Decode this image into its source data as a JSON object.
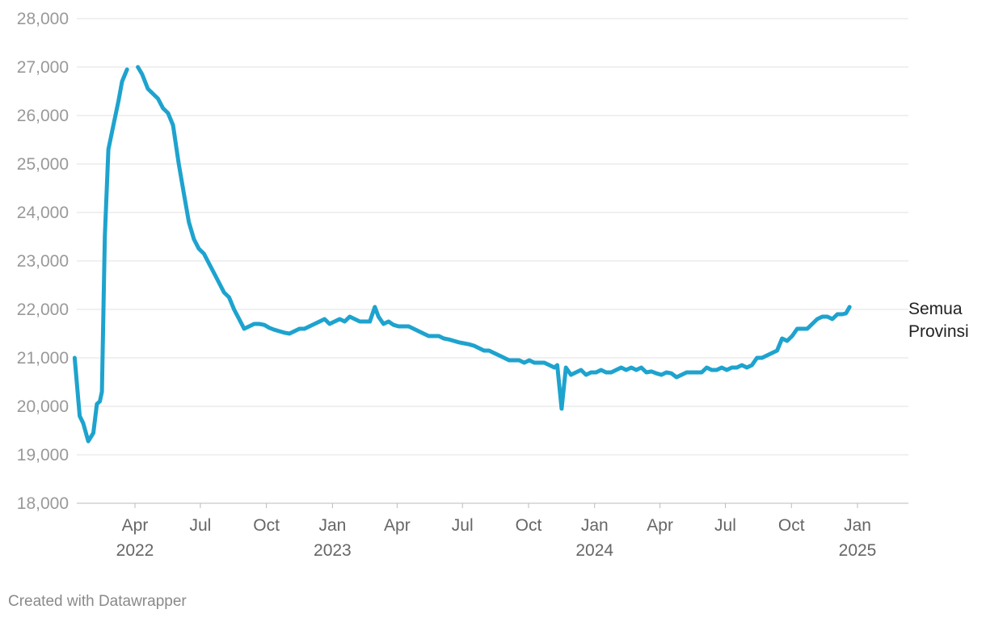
{
  "chart_data": {
    "type": "line",
    "title": "",
    "xlabel": "",
    "ylabel": "",
    "ylim": [
      18000,
      28000
    ],
    "y_ticks": [
      "28,000",
      "27,000",
      "26,000",
      "25,000",
      "24,000",
      "23,000",
      "22,000",
      "21,000",
      "20,000",
      "19,000",
      "18,000"
    ],
    "x_ticks": [
      {
        "month": "Apr",
        "year": "2022",
        "date": "2022-04-01"
      },
      {
        "month": "Jul",
        "year": "",
        "date": "2022-07-01"
      },
      {
        "month": "Oct",
        "year": "",
        "date": "2022-10-01"
      },
      {
        "month": "Jan",
        "year": "2023",
        "date": "2023-01-01"
      },
      {
        "month": "Apr",
        "year": "",
        "date": "2023-04-01"
      },
      {
        "month": "Jul",
        "year": "",
        "date": "2023-07-01"
      },
      {
        "month": "Oct",
        "year": "",
        "date": "2023-10-01"
      },
      {
        "month": "Jan",
        "year": "2024",
        "date": "2024-01-01"
      },
      {
        "month": "Apr",
        "year": "",
        "date": "2024-04-01"
      },
      {
        "month": "Jul",
        "year": "",
        "date": "2024-07-01"
      },
      {
        "month": "Oct",
        "year": "",
        "date": "2024-10-01"
      },
      {
        "month": "Jan",
        "year": "2025",
        "date": "2025-01-01"
      }
    ],
    "grid": true,
    "series": [
      {
        "name": "Semua Provinsi",
        "color": "#1ea3cf",
        "points": [
          [
            "2022-01-07",
            21000
          ],
          [
            "2022-01-14",
            19800
          ],
          [
            "2022-01-19",
            19650
          ],
          [
            "2022-01-26",
            19280
          ],
          [
            "2022-02-02",
            19450
          ],
          [
            "2022-02-07",
            20050
          ],
          [
            "2022-02-11",
            20100
          ],
          [
            "2022-02-14",
            20300
          ],
          [
            "2022-02-18",
            23500
          ],
          [
            "2022-02-23",
            25300
          ],
          [
            "2022-03-02",
            25800
          ],
          [
            "2022-03-09",
            26300
          ],
          [
            "2022-03-14",
            26700
          ],
          [
            "2022-03-21",
            26950
          ],
          null,
          [
            "2022-04-05",
            27000
          ],
          [
            "2022-04-11",
            26850
          ],
          [
            "2022-04-19",
            26550
          ],
          [
            "2022-04-26",
            26450
          ],
          [
            "2022-05-03",
            26350
          ],
          [
            "2022-05-10",
            26150
          ],
          [
            "2022-05-17",
            26050
          ],
          [
            "2022-05-24",
            25800
          ],
          [
            "2022-06-01",
            25000
          ],
          [
            "2022-06-08",
            24400
          ],
          [
            "2022-06-15",
            23800
          ],
          [
            "2022-06-22",
            23450
          ],
          [
            "2022-06-29",
            23250
          ],
          [
            "2022-07-06",
            23150
          ],
          [
            "2022-07-13",
            22950
          ],
          [
            "2022-07-20",
            22750
          ],
          [
            "2022-07-27",
            22550
          ],
          [
            "2022-08-03",
            22350
          ],
          [
            "2022-08-10",
            22250
          ],
          [
            "2022-08-17",
            22000
          ],
          [
            "2022-08-24",
            21800
          ],
          [
            "2022-08-31",
            21600
          ],
          [
            "2022-09-07",
            21650
          ],
          [
            "2022-09-14",
            21700
          ],
          [
            "2022-09-21",
            21700
          ],
          [
            "2022-09-28",
            21680
          ],
          [
            "2022-10-05",
            21620
          ],
          [
            "2022-10-12",
            21580
          ],
          [
            "2022-10-19",
            21550
          ],
          [
            "2022-10-26",
            21520
          ],
          [
            "2022-11-02",
            21500
          ],
          [
            "2022-11-09",
            21550
          ],
          [
            "2022-11-16",
            21600
          ],
          [
            "2022-11-23",
            21600
          ],
          [
            "2022-11-30",
            21650
          ],
          [
            "2022-12-07",
            21700
          ],
          [
            "2022-12-14",
            21750
          ],
          [
            "2022-12-21",
            21800
          ],
          [
            "2022-12-28",
            21700
          ],
          [
            "2023-01-04",
            21750
          ],
          [
            "2023-01-11",
            21800
          ],
          [
            "2023-01-18",
            21750
          ],
          [
            "2023-01-25",
            21850
          ],
          [
            "2023-02-01",
            21800
          ],
          [
            "2023-02-08",
            21750
          ],
          [
            "2023-02-15",
            21750
          ],
          [
            "2023-02-22",
            21750
          ],
          [
            "2023-03-01",
            22050
          ],
          [
            "2023-03-06",
            21850
          ],
          [
            "2023-03-13",
            21700
          ],
          [
            "2023-03-20",
            21750
          ],
          [
            "2023-03-27",
            21680
          ],
          [
            "2023-04-03",
            21650
          ],
          [
            "2023-04-10",
            21650
          ],
          [
            "2023-04-17",
            21650
          ],
          [
            "2023-04-24",
            21600
          ],
          [
            "2023-05-01",
            21550
          ],
          [
            "2023-05-08",
            21500
          ],
          [
            "2023-05-15",
            21450
          ],
          [
            "2023-05-22",
            21450
          ],
          [
            "2023-05-29",
            21450
          ],
          [
            "2023-06-05",
            21400
          ],
          [
            "2023-06-12",
            21380
          ],
          [
            "2023-06-19",
            21350
          ],
          [
            "2023-06-26",
            21320
          ],
          [
            "2023-07-03",
            21300
          ],
          [
            "2023-07-10",
            21280
          ],
          [
            "2023-07-17",
            21250
          ],
          [
            "2023-07-24",
            21200
          ],
          [
            "2023-07-31",
            21150
          ],
          [
            "2023-08-07",
            21150
          ],
          [
            "2023-08-14",
            21100
          ],
          [
            "2023-08-21",
            21050
          ],
          [
            "2023-08-28",
            21000
          ],
          [
            "2023-09-04",
            20950
          ],
          [
            "2023-09-11",
            20950
          ],
          [
            "2023-09-18",
            20950
          ],
          [
            "2023-09-25",
            20900
          ],
          [
            "2023-10-02",
            20950
          ],
          [
            "2023-10-09",
            20900
          ],
          [
            "2023-10-16",
            20900
          ],
          [
            "2023-10-23",
            20900
          ],
          [
            "2023-10-30",
            20850
          ],
          [
            "2023-11-06",
            20800
          ],
          [
            "2023-11-10",
            20850
          ],
          [
            "2023-11-16",
            19950
          ],
          [
            "2023-11-22",
            20800
          ],
          [
            "2023-11-29",
            20650
          ],
          [
            "2023-12-06",
            20700
          ],
          [
            "2023-12-13",
            20750
          ],
          [
            "2023-12-20",
            20650
          ],
          [
            "2023-12-27",
            20700
          ],
          [
            "2024-01-03",
            20700
          ],
          [
            "2024-01-10",
            20750
          ],
          [
            "2024-01-17",
            20700
          ],
          [
            "2024-01-24",
            20700
          ],
          [
            "2024-01-31",
            20750
          ],
          [
            "2024-02-07",
            20800
          ],
          [
            "2024-02-14",
            20750
          ],
          [
            "2024-02-21",
            20800
          ],
          [
            "2024-02-28",
            20750
          ],
          [
            "2024-03-06",
            20800
          ],
          [
            "2024-03-13",
            20700
          ],
          [
            "2024-03-20",
            20720
          ],
          [
            "2024-03-27",
            20680
          ],
          [
            "2024-04-03",
            20650
          ],
          [
            "2024-04-10",
            20700
          ],
          [
            "2024-04-17",
            20680
          ],
          [
            "2024-04-24",
            20600
          ],
          [
            "2024-05-01",
            20650
          ],
          [
            "2024-05-08",
            20700
          ],
          [
            "2024-05-15",
            20700
          ],
          [
            "2024-05-22",
            20700
          ],
          [
            "2024-05-29",
            20700
          ],
          [
            "2024-06-05",
            20800
          ],
          [
            "2024-06-12",
            20750
          ],
          [
            "2024-06-19",
            20750
          ],
          [
            "2024-06-26",
            20800
          ],
          [
            "2024-07-03",
            20750
          ],
          [
            "2024-07-10",
            20800
          ],
          [
            "2024-07-17",
            20800
          ],
          [
            "2024-07-24",
            20850
          ],
          [
            "2024-07-31",
            20800
          ],
          [
            "2024-08-07",
            20850
          ],
          [
            "2024-08-14",
            21000
          ],
          [
            "2024-08-21",
            21000
          ],
          [
            "2024-08-28",
            21050
          ],
          [
            "2024-09-04",
            21100
          ],
          [
            "2024-09-11",
            21150
          ],
          [
            "2024-09-18",
            21400
          ],
          [
            "2024-09-25",
            21350
          ],
          [
            "2024-10-02",
            21450
          ],
          [
            "2024-10-09",
            21600
          ],
          [
            "2024-10-16",
            21600
          ],
          [
            "2024-10-23",
            21600
          ],
          [
            "2024-10-30",
            21700
          ],
          [
            "2024-11-06",
            21800
          ],
          [
            "2024-11-13",
            21850
          ],
          [
            "2024-11-20",
            21850
          ],
          [
            "2024-11-27",
            21800
          ],
          [
            "2024-12-04",
            21900
          ],
          [
            "2024-12-11",
            21900
          ],
          [
            "2024-12-16",
            21920
          ],
          [
            "2024-12-21",
            22050
          ]
        ]
      }
    ],
    "series_label_lines": [
      "Semua",
      "Provinsi"
    ]
  },
  "credit": "Created with Datawrapper"
}
